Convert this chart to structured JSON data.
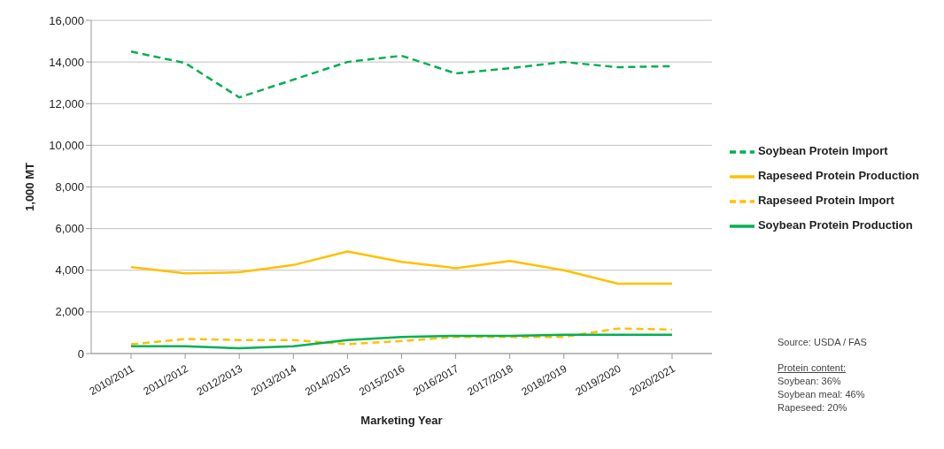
{
  "chart_data": {
    "type": "line",
    "xlabel": "Marketing Year",
    "ylabel": "1,000 MT",
    "categories": [
      "2010/2011",
      "2011/2012",
      "2012/2013",
      "2013/2014",
      "2014/2015",
      "2015/2016",
      "2016/2017",
      "2017/2018",
      "2018/2019",
      "2019/2020",
      "2020/2021"
    ],
    "series": [
      {
        "name": "Soybean Protein Import",
        "color": "#00b050",
        "line_style": "dashed",
        "values": [
          14500,
          13950,
          12300,
          13150,
          14000,
          14300,
          13450,
          13700,
          14000,
          13750,
          13800
        ]
      },
      {
        "name": "Rapeseed Protein Production",
        "color": "#ffc000",
        "line_style": "solid",
        "values": [
          4150,
          3850,
          3900,
          4250,
          4900,
          4400,
          4100,
          4450,
          4000,
          3350,
          3350
        ]
      },
      {
        "name": "Rapeseed Protein Import",
        "color": "#ffc000",
        "line_style": "dashed",
        "values": [
          450,
          700,
          650,
          650,
          450,
          600,
          800,
          800,
          800,
          1200,
          1150
        ]
      },
      {
        "name": "Soybean Protein Production",
        "color": "#00b050",
        "line_style": "solid",
        "values": [
          350,
          350,
          250,
          350,
          650,
          800,
          850,
          850,
          900,
          900,
          900
        ]
      }
    ],
    "ylim": [
      0,
      16000
    ],
    "yticks": [
      0,
      {
        "value": 2000,
        "label": "2,000"
      },
      {
        "value": 4000,
        "label": "4,000"
      },
      {
        "value": 6000,
        "label": "6,000"
      },
      {
        "value": 8000,
        "label": "8,000"
      },
      {
        "value": 10000,
        "label": "10,000"
      },
      {
        "value": 12000,
        "label": "12,000"
      },
      {
        "value": 14000,
        "label": "14,000"
      },
      {
        "value": 16000,
        "label": "16,000"
      }
    ],
    "grid": "y",
    "legend": "right",
    "marker": "none",
    "annotations": [
      "Source: USDA / FAS",
      "Protein content:",
      "Soybean: 36%",
      "Soybean meal: 46%",
      "Rapeseed: 20%"
    ]
  }
}
